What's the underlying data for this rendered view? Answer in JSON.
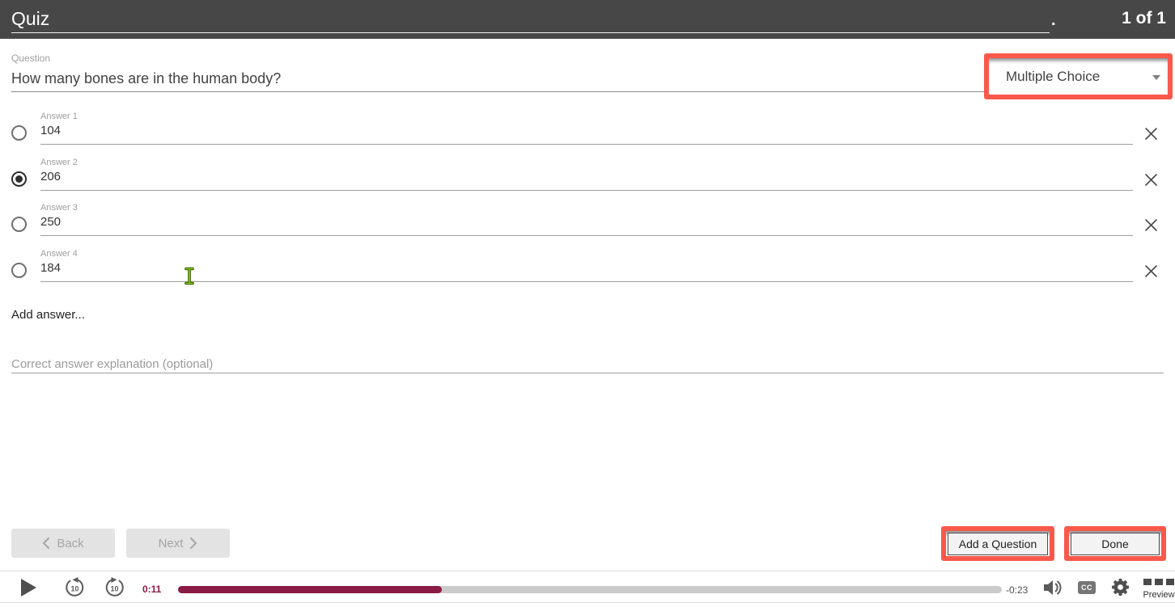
{
  "header": {
    "title": "Quiz",
    "dot": ".",
    "pager": "1 of 1"
  },
  "question": {
    "label": "Question",
    "value": "How many bones are in the human body?"
  },
  "type_dropdown": {
    "value": "Multiple Choice"
  },
  "answers": [
    {
      "label": "Answer 1",
      "value": "104",
      "selected": false
    },
    {
      "label": "Answer 2",
      "value": "206",
      "selected": true
    },
    {
      "label": "Answer 3",
      "value": "250",
      "selected": false
    },
    {
      "label": "Answer 4",
      "value": "184",
      "selected": false
    }
  ],
  "add_answer": "Add answer...",
  "explanation": {
    "placeholder": "Correct answer explanation (optional)"
  },
  "nav": {
    "back": "Back",
    "next": "Next"
  },
  "actions": {
    "add_question": "Add a Question",
    "done": "Done"
  },
  "player": {
    "elapsed": "0:11",
    "remaining": "-0:23",
    "progress_pct": 32,
    "skip_back_label": "10",
    "skip_forward_label": "10",
    "cc": "CC",
    "preview": "Preview"
  },
  "colors": {
    "annotation_red": "#f9594b",
    "progress_maroon": "#8a1b44",
    "topbar": "#474747"
  }
}
